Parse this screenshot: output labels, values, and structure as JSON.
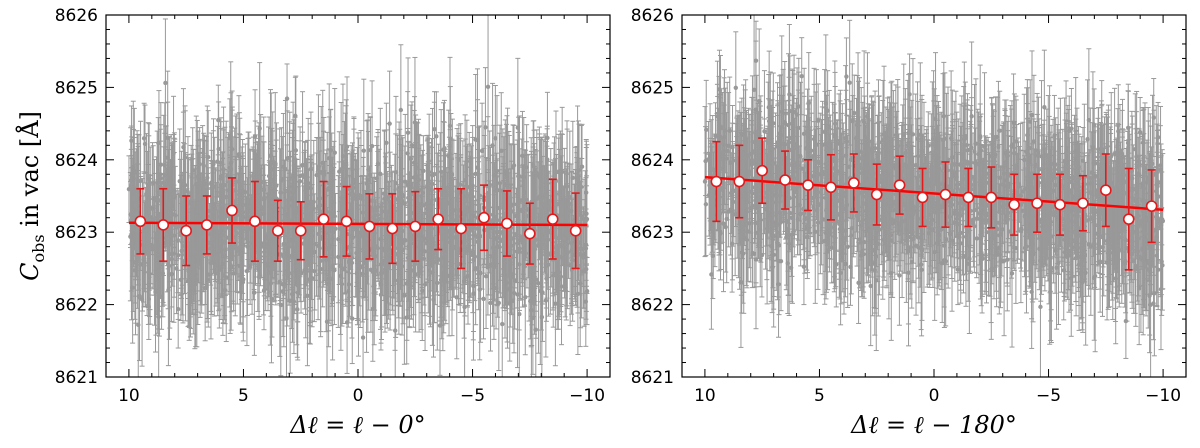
{
  "figure": {
    "ylabel": "C_obs in vac [Å]",
    "ylabel_parts": {
      "symbol": "C",
      "subscript": "obs",
      "rest": " in vac [Å]"
    }
  },
  "colors": {
    "raw_points": "#999999",
    "binned_error": "#e31a1c",
    "binned_face": "#ffffff",
    "fit_line": "#ff0000"
  },
  "chart_data": [
    {
      "type": "scatter",
      "xlabel": "Δℓ = ℓ − 0°",
      "xlim": [
        11,
        -11
      ],
      "ylim": [
        8621,
        8626
      ],
      "x_ticks": [
        10,
        5,
        0,
        -5,
        -10
      ],
      "x_tick_labels": [
        "10",
        "5",
        "0",
        "−5",
        "−10"
      ],
      "y_ticks": [
        8621,
        8622,
        8623,
        8624,
        8625,
        8626
      ],
      "y_tick_labels": [
        "8621",
        "8622",
        "8623",
        "8624",
        "8625",
        "8626"
      ],
      "raw_points": {
        "n": 1500,
        "x_range": [
          10,
          -10
        ],
        "y_center": 8623.1,
        "y_scatter_sigma": 0.5,
        "error_mean": 0.75
      },
      "binned": {
        "x": [
          9.5,
          8.5,
          7.5,
          6.6,
          5.5,
          4.5,
          3.5,
          2.5,
          1.5,
          0.5,
          -0.5,
          -1.5,
          -2.5,
          -3.5,
          -4.5,
          -5.5,
          -6.5,
          -7.5,
          -8.5,
          -9.5
        ],
        "y": [
          8623.15,
          8623.1,
          8623.02,
          8623.1,
          8623.3,
          8623.15,
          8623.02,
          8623.02,
          8623.18,
          8623.15,
          8623.08,
          8623.05,
          8623.08,
          8623.18,
          8623.05,
          8623.2,
          8623.12,
          8622.98,
          8623.18,
          8623.02
        ],
        "err": [
          0.45,
          0.5,
          0.48,
          0.4,
          0.45,
          0.55,
          0.42,
          0.4,
          0.52,
          0.48,
          0.45,
          0.48,
          0.48,
          0.42,
          0.55,
          0.45,
          0.45,
          0.42,
          0.55,
          0.52
        ]
      },
      "fit": {
        "x": [
          10,
          -10
        ],
        "y": [
          8623.13,
          8623.1
        ]
      }
    },
    {
      "type": "scatter",
      "xlabel": "Δℓ = ℓ − 180°",
      "xlim": [
        11,
        -11
      ],
      "ylim": [
        8621,
        8626
      ],
      "x_ticks": [
        10,
        5,
        0,
        -5,
        -10
      ],
      "x_tick_labels": [
        "10",
        "5",
        "0",
        "−5",
        "−10"
      ],
      "y_ticks": [
        8621,
        8622,
        8623,
        8624,
        8625,
        8626
      ],
      "y_tick_labels": [
        "8621",
        "8622",
        "8623",
        "8624",
        "8625",
        "8626"
      ],
      "raw_points": {
        "n": 1500,
        "x_range": [
          10,
          -10
        ],
        "y_center": [
          8623.75,
          8623.3
        ],
        "y_scatter_sigma": 0.5,
        "error_mean": 0.75
      },
      "binned": {
        "x": [
          9.5,
          8.5,
          7.5,
          6.5,
          5.5,
          4.5,
          3.5,
          2.5,
          1.5,
          0.5,
          -0.5,
          -1.5,
          -2.5,
          -3.5,
          -4.5,
          -5.5,
          -6.5,
          -7.5,
          -8.5,
          -9.5
        ],
        "y": [
          8623.7,
          8623.7,
          8623.85,
          8623.72,
          8623.65,
          8623.62,
          8623.68,
          8623.52,
          8623.65,
          8623.48,
          8623.52,
          8623.48,
          8623.48,
          8623.38,
          8623.4,
          8623.38,
          8623.4,
          8623.58,
          8623.18,
          8623.36
        ],
        "err": [
          0.55,
          0.5,
          0.45,
          0.4,
          0.35,
          0.45,
          0.4,
          0.42,
          0.4,
          0.4,
          0.45,
          0.4,
          0.42,
          0.42,
          0.4,
          0.42,
          0.38,
          0.5,
          0.7,
          0.5
        ]
      },
      "fit": {
        "x": [
          10,
          -10
        ],
        "y": [
          8623.76,
          8623.31
        ]
      }
    }
  ]
}
